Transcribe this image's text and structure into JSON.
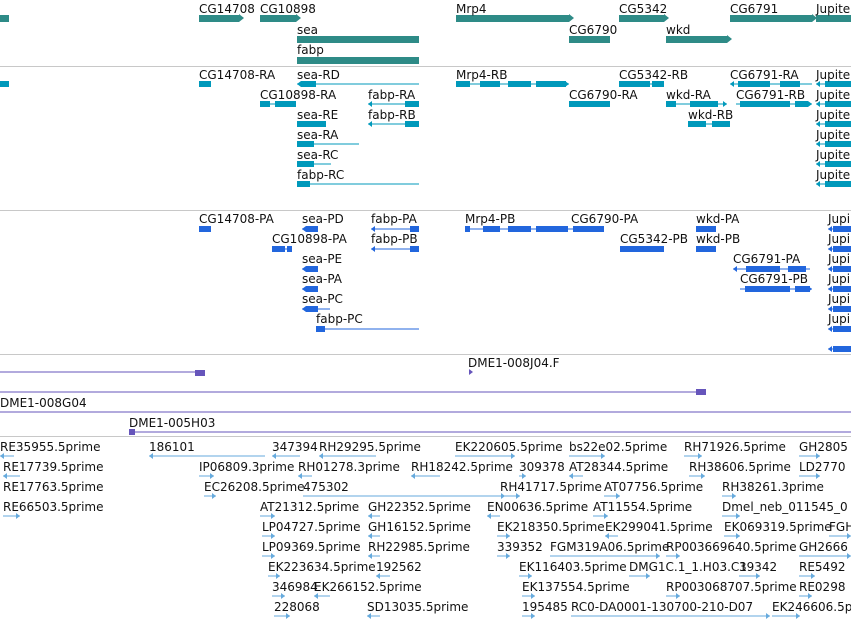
{
  "colors": {
    "gene": "#2e8b87",
    "rna": "#0099bb",
    "protein": "#2266dd",
    "clone": "#6655bb",
    "est": "#66aadd",
    "separator": "#c8c8c8"
  },
  "tracks": {
    "genes": {
      "items": [
        {
          "label": "CG14708"
        },
        {
          "label": "CG10898"
        },
        {
          "label": "sea"
        },
        {
          "label": "fabp"
        },
        {
          "label": "Mrp4"
        },
        {
          "label": "CG5342"
        },
        {
          "label": "CG6790"
        },
        {
          "label": "wkd"
        },
        {
          "label": "CG6791"
        },
        {
          "label": "Jupiter"
        }
      ]
    },
    "transcripts": {
      "items": [
        {
          "label": "CG14708-RA"
        },
        {
          "label": "sea-RD"
        },
        {
          "label": "CG10898-RA"
        },
        {
          "label": "fabp-RA"
        },
        {
          "label": "sea-RE"
        },
        {
          "label": "fabp-RB"
        },
        {
          "label": "sea-RA"
        },
        {
          "label": "sea-RC"
        },
        {
          "label": "fabp-RC"
        },
        {
          "label": "Mrp4-RB"
        },
        {
          "label": "CG5342-RB"
        },
        {
          "label": "CG6791-RA"
        },
        {
          "label": "CG6790-RA"
        },
        {
          "label": "wkd-RA"
        },
        {
          "label": "CG6791-RB"
        },
        {
          "label": "wkd-RB"
        },
        {
          "label": "Jupiter"
        },
        {
          "label": "Jupiter"
        },
        {
          "label": "Jupiter"
        },
        {
          "label": "Jupiter"
        },
        {
          "label": "Jupiter"
        },
        {
          "label": "Jupiter"
        }
      ]
    },
    "proteins": {
      "items": [
        {
          "label": "CG14708-PA"
        },
        {
          "label": "sea-PD"
        },
        {
          "label": "fabp-PA"
        },
        {
          "label": "CG10898-PA"
        },
        {
          "label": "fabp-PB"
        },
        {
          "label": "sea-PE"
        },
        {
          "label": "sea-PA"
        },
        {
          "label": "sea-PC"
        },
        {
          "label": "fabp-PC"
        },
        {
          "label": "Mrp4-PB"
        },
        {
          "label": "CG6790-PA"
        },
        {
          "label": "CG5342-PB"
        },
        {
          "label": "wkd-PA"
        },
        {
          "label": "wkd-PB"
        },
        {
          "label": "CG6791-PA"
        },
        {
          "label": "CG6791-PB"
        },
        {
          "label": "Jupi"
        },
        {
          "label": "Jupi"
        },
        {
          "label": "Jupi"
        },
        {
          "label": "Jupi"
        },
        {
          "label": "Jupi"
        },
        {
          "label": "Jupi"
        }
      ]
    },
    "clones": {
      "items": [
        {
          "label": "DME1-008J04.F"
        },
        {
          "label": "DME1-008G04"
        },
        {
          "label": "DME1-005H03"
        }
      ]
    },
    "ests": {
      "items": [
        {
          "label": "RE35955.5prime"
        },
        {
          "label": "186101"
        },
        {
          "label": "347394"
        },
        {
          "label": "RH29295.5prime"
        },
        {
          "label": "EK220605.5prime"
        },
        {
          "label": "bs22e02.5prime"
        },
        {
          "label": "RH71926.5prime"
        },
        {
          "label": "GH2805"
        },
        {
          "label": "RE17739.5prime"
        },
        {
          "label": "IP06809.3prime"
        },
        {
          "label": "RH01278.3prime"
        },
        {
          "label": "RH18242.5prime"
        },
        {
          "label": "309378"
        },
        {
          "label": "AT28344.5prime"
        },
        {
          "label": "RH38606.5prime"
        },
        {
          "label": "LD2770"
        },
        {
          "label": "RE17763.5prime"
        },
        {
          "label": "EC26208.5prime"
        },
        {
          "label": "475302"
        },
        {
          "label": "RH41717.5prime"
        },
        {
          "label": "AT07756.5prime"
        },
        {
          "label": "RH38261.3prime"
        },
        {
          "label": "RE66503.5prime"
        },
        {
          "label": "AT21312.5prime"
        },
        {
          "label": "GH22352.5prime"
        },
        {
          "label": "EN00636.5prime"
        },
        {
          "label": "AT11554.5prime"
        },
        {
          "label": "Dmel_neb_011545_0"
        },
        {
          "label": "LP04727.5prime"
        },
        {
          "label": "GH16152.5prime"
        },
        {
          "label": "EK218350.5prime"
        },
        {
          "label": "EK299041.5prime"
        },
        {
          "label": "EK069319.5prime"
        },
        {
          "label": "FGH"
        },
        {
          "label": "LP09369.5prime"
        },
        {
          "label": "RH22985.5prime"
        },
        {
          "label": "339352"
        },
        {
          "label": "FGM319A06.5prime"
        },
        {
          "label": "RP003669640.5prime"
        },
        {
          "label": "GH2666"
        },
        {
          "label": "EK223634.5prime"
        },
        {
          "label": "192562"
        },
        {
          "label": "EK116403.5prime"
        },
        {
          "label": "DMG1C.1_1.H03.C1"
        },
        {
          "label": "39342"
        },
        {
          "label": "RE5492"
        },
        {
          "label": "346984"
        },
        {
          "label": "EK266152.5prime"
        },
        {
          "label": "EK137554.5prime"
        },
        {
          "label": "RP003068707.5prime"
        },
        {
          "label": "RE0298"
        },
        {
          "label": "228068"
        },
        {
          "label": "SD13035.5prime"
        },
        {
          "label": "195485"
        },
        {
          "label": "RC0-DA0001-130700-210-D07"
        },
        {
          "label": "EK246606.5p"
        }
      ]
    }
  }
}
